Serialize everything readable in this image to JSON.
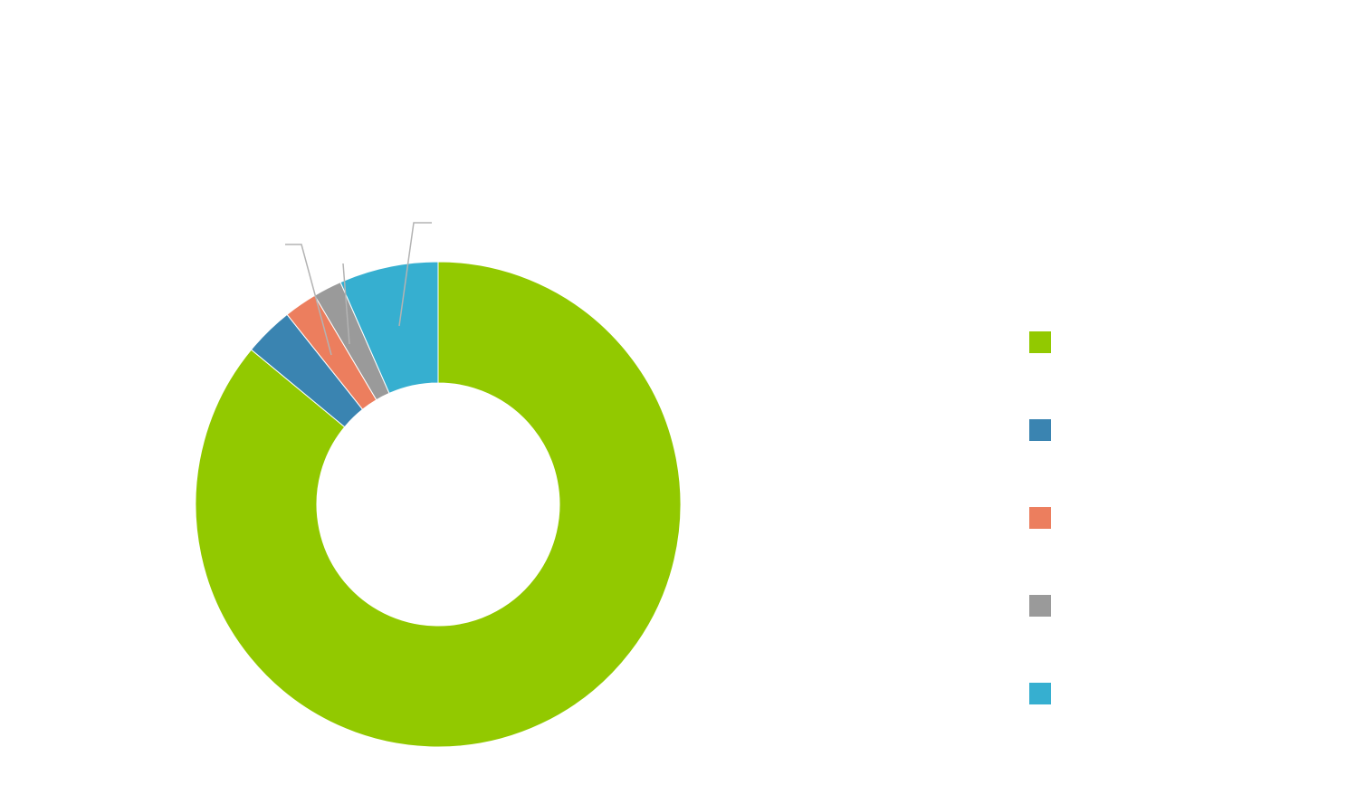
{
  "chart_data": {
    "type": "pie",
    "subtype": "donut",
    "title": "",
    "xlabel": "",
    "ylabel": "",
    "slices": [
      {
        "name": "",
        "value": 86.0,
        "color": "#92c900"
      },
      {
        "name": "",
        "value": 3.3,
        "color": "#3a84b1"
      },
      {
        "name": "",
        "value": 2.2,
        "color": "#ec7e5e"
      },
      {
        "name": "",
        "value": 1.9,
        "color": "#9a9a9a"
      },
      {
        "name": "",
        "value": 6.6,
        "color": "#36afd0"
      }
    ],
    "legend_position": "right",
    "direction": "counterclockwise",
    "start_angle_deg": 0
  }
}
